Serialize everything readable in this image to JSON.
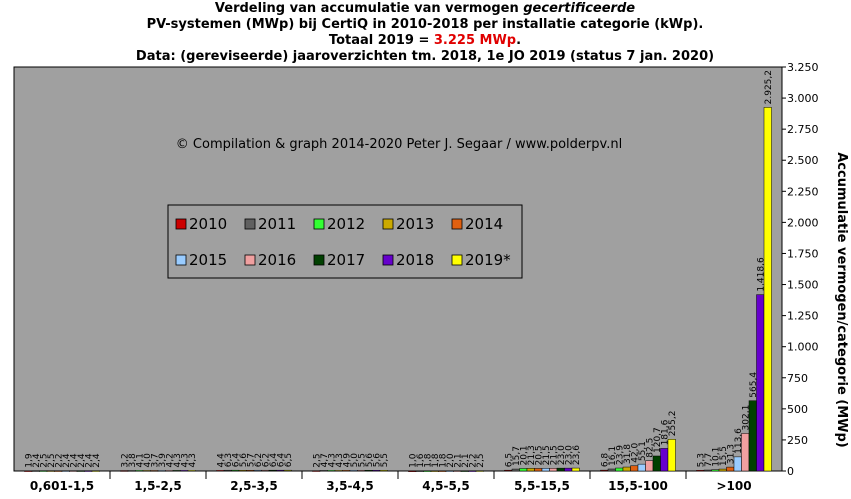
{
  "chart_data": {
    "type": "bar",
    "title_lines": [
      [
        "Verdeling van accumulatie van vermogen ",
        "gecertificeerde"
      ],
      [
        "PV-systemen (MWp) bij CertiQ in 2010-2018 per installatie categorie (kWp)."
      ],
      [
        "Totaal 2019 = ",
        "3.225 MWp",
        "."
      ],
      [
        "Data: (gereviseerde) jaaroverzichten tm. 2018, 1e JO 2019 (status 7 jan. 2020)"
      ]
    ],
    "annotation": "© Compilation  & graph 2014-2020 Peter J. Segaar / www.polderpv.nl",
    "y_label": "Accumulatie vermogen/categorie (MWp)",
    "categories": [
      "0,601-1,5",
      "1,5-2,5",
      "2,5-3,5",
      "3,5-4,5",
      "4,5-5,5",
      "5,5-15,5",
      "15,5-100",
      ">100"
    ],
    "series": [
      {
        "name": "2010",
        "color": "#cc0000",
        "values": [
          1.9,
          3.2,
          4.4,
          2.5,
          1.0,
          6.5,
          6.8,
          5.3
        ],
        "value_labels": [
          "1,9",
          "3,2",
          "4,4",
          "2,5",
          "1,0",
          "6,5",
          "6,8",
          "5,3"
        ]
      },
      {
        "name": "2011",
        "color": "#606060",
        "values": [
          2.4,
          3.8,
          6.3,
          4.7,
          1.6,
          15.7,
          16.1,
          7.7
        ],
        "value_labels": [
          "2,4",
          "3,8",
          "6,3",
          "4,7",
          "1,6",
          "15,7",
          "16,1",
          "7,7"
        ]
      },
      {
        "name": "2012",
        "color": "#33ff33",
        "values": [
          2.5,
          4.1,
          6.4,
          4.3,
          1.8,
          20.1,
          23.9,
          10.1
        ],
        "value_labels": [
          "2,5",
          "4,1",
          "6,4",
          "4,3",
          "1,8",
          "20,1",
          "23,9",
          "10,1"
        ]
      },
      {
        "name": "2013",
        "color": "#ccaa00",
        "values": [
          2.5,
          4.0,
          5.6,
          4.3,
          1.8,
          21.3,
          31.8,
          15.5
        ],
        "value_labels": [
          "2,5",
          "4,0",
          "5,6",
          "4,3",
          "1,8",
          "21,3",
          "31,8",
          "15,5"
        ]
      },
      {
        "name": "2014",
        "color": "#e06010",
        "values": [
          2.2,
          3.7,
          5.7,
          4.9,
          1.8,
          20.5,
          42.0,
          31.3
        ],
        "value_labels": [
          "2,2",
          "3,7",
          "5,7",
          "4,9",
          "1,8",
          "20,5",
          "42,0",
          "31,3"
        ]
      },
      {
        "name": "2015",
        "color": "#99ccff",
        "values": [
          2.4,
          3.9,
          6.2,
          5.0,
          2.0,
          21.5,
          55.1,
          113.6
        ],
        "value_labels": [
          "2,4",
          "3,9",
          "6,2",
          "5,0",
          "2,0",
          "21,5",
          "55,1",
          "113,6"
        ]
      },
      {
        "name": "2016",
        "color": "#f0a0a0",
        "values": [
          2.4,
          4.2,
          6.2,
          5.5,
          2.1,
          21.5,
          82.5,
          302.1
        ],
        "value_labels": [
          "2,4",
          "4,2",
          "6,2",
          "5,5",
          "2,1",
          "21,5",
          "82,5",
          "302,1"
        ]
      },
      {
        "name": "2017",
        "color": "#004000",
        "values": [
          2.4,
          4.3,
          6.4,
          5.6,
          2.1,
          23.0,
          120.7,
          565.4
        ],
        "value_labels": [
          "2,4",
          "4,3",
          "6,4",
          "5,6",
          "2,1",
          "23,0",
          "120,7",
          "565,4"
        ]
      },
      {
        "name": "2018",
        "color": "#6600cc",
        "values": [
          2.4,
          4.3,
          6.4,
          5.6,
          2.2,
          23.0,
          181.6,
          1418.6
        ],
        "value_labels": [
          "2,4",
          "4,3",
          "6,4",
          "5,6",
          "2,2",
          "23,0",
          "181,6",
          "1.418,6"
        ]
      },
      {
        "name": "2019*",
        "color": "#ffff00",
        "values": [
          2.4,
          4.3,
          6.5,
          5.5,
          2.5,
          23.6,
          255.2,
          2925.2
        ],
        "value_labels": [
          "2,4",
          "4,3",
          "6,5",
          "5,5",
          "2,5",
          "23,6",
          "255,2",
          "2.925,2"
        ]
      }
    ],
    "ylim": [
      0,
      3250
    ],
    "yticks": [
      0,
      250,
      500,
      750,
      {
        "value": 1000,
        "label": "1.000"
      },
      {
        "value": 1250,
        "label": "1.250"
      },
      {
        "value": 1500,
        "label": "1.500"
      },
      {
        "value": 1750,
        "label": "1.750"
      },
      {
        "value": 2000,
        "label": "2.000"
      },
      {
        "value": 2250,
        "label": "2.250"
      },
      {
        "value": 2500,
        "label": "2.500"
      },
      {
        "value": 2750,
        "label": "2.750"
      },
      {
        "value": 3000,
        "label": "3.000"
      },
      {
        "value": 3250,
        "label": "3.250"
      }
    ],
    "y_axis_side": "right",
    "plot_background": "#a0a0a0"
  }
}
